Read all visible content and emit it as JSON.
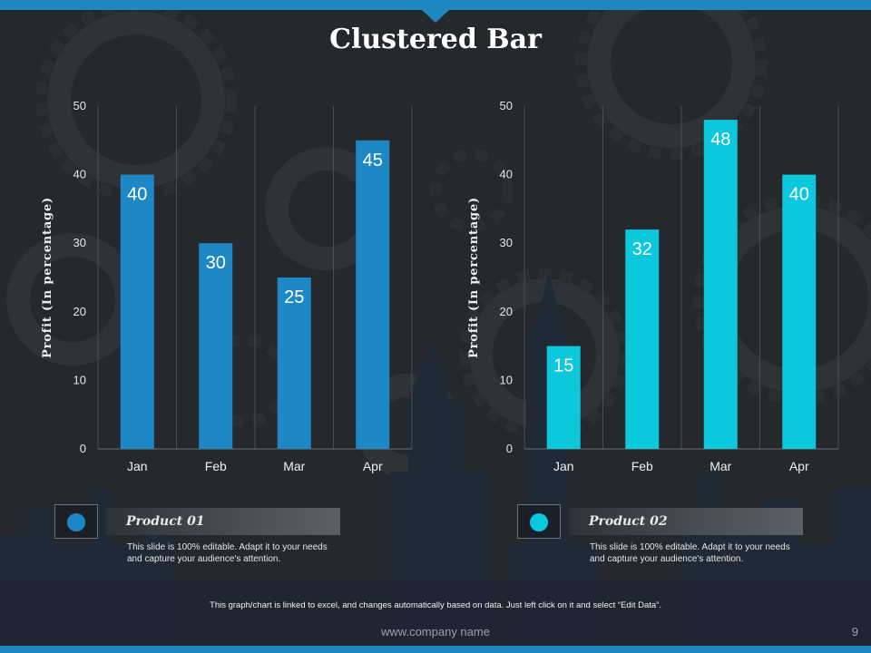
{
  "slide": {
    "title": "Clustered Bar",
    "note": "This graph/chart is linked to excel, and changes automatically based on data. Just left click on it and select “Edit Data”.",
    "footer_url": "www.company  name",
    "page_number": "9"
  },
  "colors": {
    "accent": "#1f87c0",
    "product1": "#1e88c6",
    "product2": "#0cc8dd"
  },
  "chart_data": [
    {
      "type": "bar",
      "title": "",
      "categories": [
        "Jan",
        "Feb",
        "Mar",
        "Apr"
      ],
      "series": [
        {
          "name": "Product 01",
          "values": [
            40,
            30,
            25,
            45
          ]
        }
      ],
      "ylabel": "Profit  (In percentage)",
      "xlabel": "",
      "ylim": [
        0,
        50
      ],
      "yticks": [
        0,
        10,
        20,
        30,
        40,
        50
      ],
      "grid": "vertical category separators",
      "color": "#1e88c6"
    },
    {
      "type": "bar",
      "title": "",
      "categories": [
        "Jan",
        "Feb",
        "Mar",
        "Apr"
      ],
      "series": [
        {
          "name": "Product 02",
          "values": [
            15,
            32,
            48,
            40
          ]
        }
      ],
      "ylabel": "Profit  (In percentage)",
      "xlabel": "",
      "ylim": [
        0,
        50
      ],
      "yticks": [
        0,
        10,
        20,
        30,
        40,
        50
      ],
      "grid": "vertical category separators",
      "color": "#0cc8dd"
    }
  ],
  "products": [
    {
      "label": "Product 01",
      "description": "This slide is 100% editable.  Adapt it to your needs and capture your audience's attention.",
      "icon": "circle-marker-icon"
    },
    {
      "label": "Product 02",
      "description": "This slide is 100% editable.  Adapt it to your needs and capture your audience's attention.",
      "icon": "circle-marker-icon"
    }
  ]
}
